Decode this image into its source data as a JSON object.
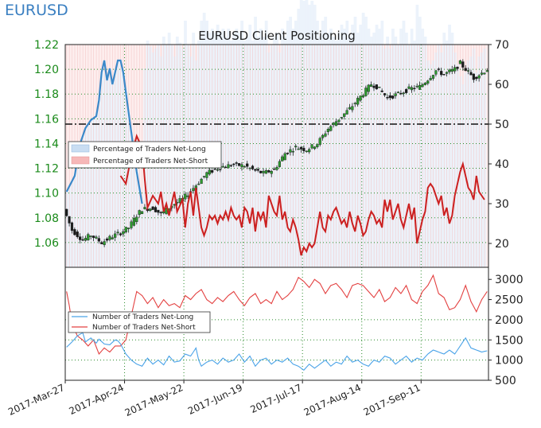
{
  "page_title": "EURUSD",
  "chart_data": [
    {
      "type": "candlestick+line",
      "title": "EURUSD Client Positioning",
      "x_dates": [
        "2017-Mar-27",
        "2017-Apr-24",
        "2017-May-22",
        "2017-Jun-19",
        "2017-Jul-17",
        "2017-Aug-14",
        "2017-Sep-11"
      ],
      "x_date_labels": [
        "2017-Mar-27",
        "2017-Apr-24",
        "2017-May-22",
        "2017-Jun-19",
        "2017-Jul-17",
        "2017-Aug-14",
        "2017-Sep-11"
      ],
      "y_left_ticks": [
        "1.06",
        "1.08",
        "1.10",
        "1.12",
        "1.14",
        "1.16",
        "1.18",
        "1.20",
        "1.22"
      ],
      "y_left_lim": [
        1.04,
        1.22
      ],
      "y_right_ticks": [
        "20",
        "30",
        "40",
        "50",
        "60",
        "70"
      ],
      "y_right_lim": [
        14,
        70
      ],
      "reference_line": 50,
      "legend": [
        {
          "label": "Percentage of Traders Net-Long",
          "color": "#c9ddf2"
        },
        {
          "label": "Percentage of Traders Net-Short",
          "color": "#f6b8b8"
        }
      ],
      "price_anchors": [
        [
          0,
          1.087
        ],
        [
          3,
          1.07
        ],
        [
          7,
          1.062
        ],
        [
          10,
          1.066
        ],
        [
          14,
          1.06
        ],
        [
          18,
          1.065
        ],
        [
          21,
          1.068
        ],
        [
          24,
          1.072
        ],
        [
          27,
          1.082
        ],
        [
          29,
          1.087
        ],
        [
          33,
          1.088
        ],
        [
          36,
          1.083
        ],
        [
          40,
          1.09
        ],
        [
          44,
          1.095
        ],
        [
          48,
          1.104
        ],
        [
          53,
          1.116
        ],
        [
          58,
          1.121
        ],
        [
          63,
          1.123
        ],
        [
          67,
          1.122
        ],
        [
          71,
          1.118
        ],
        [
          74,
          1.116
        ],
        [
          78,
          1.119
        ],
        [
          82,
          1.132
        ],
        [
          86,
          1.137
        ],
        [
          90,
          1.135
        ],
        [
          94,
          1.14
        ],
        [
          98,
          1.152
        ],
        [
          102,
          1.16
        ],
        [
          106,
          1.168
        ],
        [
          110,
          1.178
        ],
        [
          114,
          1.188
        ],
        [
          116,
          1.186
        ],
        [
          120,
          1.177
        ],
        [
          124,
          1.18
        ],
        [
          128,
          1.184
        ],
        [
          132,
          1.186
        ],
        [
          135,
          1.192
        ],
        [
          138,
          1.199
        ],
        [
          141,
          1.196
        ],
        [
          145,
          1.2
        ],
        [
          147,
          1.205
        ],
        [
          149,
          1.2
        ],
        [
          152,
          1.193
        ],
        [
          155,
          1.197
        ],
        [
          157,
          1.2
        ]
      ],
      "net_long_pct_anchors": [
        [
          0,
          33
        ],
        [
          3,
          37
        ],
        [
          5,
          45
        ],
        [
          7,
          49
        ],
        [
          9,
          51
        ],
        [
          11,
          52
        ],
        [
          12,
          56
        ],
        [
          13,
          63
        ],
        [
          14,
          66
        ],
        [
          15,
          61
        ],
        [
          16,
          64
        ],
        [
          17,
          60
        ],
        [
          18,
          63
        ],
        [
          19,
          66
        ],
        [
          20,
          66
        ],
        [
          21,
          63
        ],
        [
          22,
          58
        ],
        [
          23,
          53
        ],
        [
          24,
          48
        ],
        [
          25,
          43
        ],
        [
          26,
          38
        ],
        [
          27,
          34
        ],
        [
          28,
          30
        ]
      ],
      "net_short_pct_anchors": [
        [
          20,
          37
        ],
        [
          22,
          35
        ],
        [
          24,
          42
        ],
        [
          26,
          47
        ],
        [
          28,
          44
        ],
        [
          29,
          36
        ],
        [
          30,
          29
        ],
        [
          32,
          32
        ],
        [
          34,
          30
        ],
        [
          35,
          33
        ],
        [
          36,
          28
        ],
        [
          37,
          30
        ],
        [
          38,
          27
        ],
        [
          40,
          33
        ],
        [
          41,
          28
        ],
        [
          43,
          31
        ],
        [
          44,
          24
        ],
        [
          45,
          30
        ],
        [
          46,
          33
        ],
        [
          47,
          27
        ],
        [
          48,
          34
        ],
        [
          49,
          29
        ],
        [
          50,
          24
        ],
        [
          51,
          22
        ],
        [
          52,
          24
        ],
        [
          53,
          27
        ],
        [
          54,
          26
        ],
        [
          55,
          27
        ],
        [
          56,
          25
        ],
        [
          57,
          27
        ],
        [
          58,
          26
        ],
        [
          59,
          28
        ],
        [
          60,
          26
        ],
        [
          61,
          29
        ],
        [
          62,
          27
        ],
        [
          63,
          26
        ],
        [
          64,
          27
        ],
        [
          65,
          24
        ],
        [
          66,
          29
        ],
        [
          67,
          28
        ],
        [
          68,
          25
        ],
        [
          69,
          29
        ],
        [
          70,
          23
        ],
        [
          71,
          28
        ],
        [
          72,
          26
        ],
        [
          73,
          28
        ],
        [
          74,
          24
        ],
        [
          75,
          32
        ],
        [
          76,
          30
        ],
        [
          77,
          28
        ],
        [
          78,
          27
        ],
        [
          79,
          32
        ],
        [
          80,
          26
        ],
        [
          81,
          28
        ],
        [
          82,
          24
        ],
        [
          83,
          23
        ],
        [
          84,
          26
        ],
        [
          85,
          24
        ],
        [
          86,
          21
        ],
        [
          87,
          17
        ],
        [
          88,
          19
        ],
        [
          89,
          18
        ],
        [
          90,
          20
        ],
        [
          91,
          19
        ],
        [
          92,
          20
        ],
        [
          93,
          24
        ],
        [
          94,
          28
        ],
        [
          95,
          24
        ],
        [
          96,
          23
        ],
        [
          97,
          27
        ],
        [
          98,
          26
        ],
        [
          99,
          28
        ],
        [
          100,
          29
        ],
        [
          101,
          27
        ],
        [
          102,
          25
        ],
        [
          103,
          26
        ],
        [
          104,
          24
        ],
        [
          105,
          28
        ],
        [
          106,
          25
        ],
        [
          107,
          23
        ],
        [
          108,
          27
        ],
        [
          109,
          25
        ],
        [
          110,
          22
        ],
        [
          111,
          23
        ],
        [
          112,
          26
        ],
        [
          113,
          28
        ],
        [
          114,
          27
        ],
        [
          115,
          25
        ],
        [
          116,
          26
        ],
        [
          117,
          24
        ],
        [
          118,
          31
        ],
        [
          119,
          28
        ],
        [
          120,
          31
        ],
        [
          121,
          26
        ],
        [
          122,
          28
        ],
        [
          123,
          30
        ],
        [
          124,
          26
        ],
        [
          125,
          24
        ],
        [
          126,
          27
        ],
        [
          127,
          30
        ],
        [
          128,
          26
        ],
        [
          129,
          29
        ],
        [
          130,
          20
        ],
        [
          131,
          23
        ],
        [
          132,
          26
        ],
        [
          133,
          28
        ],
        [
          134,
          34
        ],
        [
          135,
          35
        ],
        [
          136,
          34
        ],
        [
          137,
          32
        ],
        [
          138,
          30
        ],
        [
          139,
          32
        ],
        [
          140,
          27
        ],
        [
          141,
          29
        ],
        [
          142,
          25
        ],
        [
          143,
          27
        ],
        [
          144,
          32
        ],
        [
          145,
          35
        ],
        [
          146,
          38
        ],
        [
          147,
          40
        ],
        [
          148,
          37
        ],
        [
          149,
          34
        ],
        [
          150,
          33
        ],
        [
          151,
          31
        ],
        [
          152,
          37
        ],
        [
          153,
          33
        ],
        [
          154,
          32
        ],
        [
          155,
          31
        ]
      ]
    },
    {
      "type": "line",
      "y_ticks": [
        "500",
        "1000",
        "1500",
        "2000",
        "2500",
        "3000"
      ],
      "ylim": [
        500,
        3300
      ],
      "legend": [
        {
          "label": "Number of Traders Net-Long",
          "color": "#4aa3e8"
        },
        {
          "label": "Number of Traders Net-Short",
          "color": "#e34040"
        }
      ],
      "net_long_anchors": [
        [
          0,
          1320
        ],
        [
          2,
          1450
        ],
        [
          4,
          1600
        ],
        [
          6,
          1680
        ],
        [
          7,
          1450
        ],
        [
          9,
          1550
        ],
        [
          11,
          1420
        ],
        [
          12,
          1520
        ],
        [
          14,
          1400
        ],
        [
          16,
          1380
        ],
        [
          18,
          1500
        ],
        [
          19,
          1480
        ],
        [
          20,
          1400
        ],
        [
          22,
          1150
        ],
        [
          24,
          1000
        ],
        [
          26,
          900
        ],
        [
          28,
          850
        ],
        [
          30,
          1050
        ],
        [
          32,
          900
        ],
        [
          34,
          1000
        ],
        [
          36,
          880
        ],
        [
          38,
          1100
        ],
        [
          40,
          950
        ],
        [
          42,
          980
        ],
        [
          44,
          1150
        ],
        [
          46,
          1100
        ],
        [
          48,
          1300
        ],
        [
          49,
          1000
        ],
        [
          50,
          850
        ],
        [
          52,
          950
        ],
        [
          54,
          1000
        ],
        [
          56,
          900
        ],
        [
          58,
          1050
        ],
        [
          60,
          950
        ],
        [
          62,
          1000
        ],
        [
          64,
          1150
        ],
        [
          66,
          950
        ],
        [
          68,
          1100
        ],
        [
          70,
          850
        ],
        [
          72,
          1000
        ],
        [
          74,
          1050
        ],
        [
          76,
          900
        ],
        [
          78,
          1000
        ],
        [
          80,
          950
        ],
        [
          82,
          1050
        ],
        [
          84,
          900
        ],
        [
          86,
          850
        ],
        [
          88,
          750
        ],
        [
          90,
          900
        ],
        [
          92,
          800
        ],
        [
          94,
          900
        ],
        [
          96,
          1000
        ],
        [
          98,
          850
        ],
        [
          100,
          950
        ],
        [
          102,
          900
        ],
        [
          104,
          1100
        ],
        [
          106,
          950
        ],
        [
          108,
          1000
        ],
        [
          110,
          900
        ],
        [
          112,
          850
        ],
        [
          114,
          1000
        ],
        [
          116,
          950
        ],
        [
          118,
          1100
        ],
        [
          120,
          1050
        ],
        [
          122,
          900
        ],
        [
          124,
          1000
        ],
        [
          126,
          1100
        ],
        [
          128,
          950
        ],
        [
          130,
          1050
        ],
        [
          132,
          1000
        ],
        [
          134,
          1150
        ],
        [
          136,
          1250
        ],
        [
          138,
          1200
        ],
        [
          140,
          1150
        ],
        [
          142,
          1250
        ],
        [
          144,
          1150
        ],
        [
          146,
          1350
        ],
        [
          148,
          1550
        ],
        [
          150,
          1300
        ],
        [
          152,
          1250
        ],
        [
          154,
          1200
        ],
        [
          156,
          1230
        ]
      ],
      "net_short_anchors": [
        [
          0,
          2700
        ],
        [
          1,
          2350
        ],
        [
          2,
          1900
        ],
        [
          4,
          1600
        ],
        [
          6,
          1500
        ],
        [
          8,
          1350
        ],
        [
          10,
          1500
        ],
        [
          12,
          1150
        ],
        [
          14,
          1300
        ],
        [
          16,
          1200
        ],
        [
          18,
          1350
        ],
        [
          20,
          1350
        ],
        [
          22,
          1500
        ],
        [
          24,
          2100
        ],
        [
          26,
          2700
        ],
        [
          28,
          2600
        ],
        [
          30,
          2400
        ],
        [
          32,
          2550
        ],
        [
          34,
          2300
        ],
        [
          36,
          2500
        ],
        [
          38,
          2350
        ],
        [
          40,
          2400
        ],
        [
          42,
          2300
        ],
        [
          44,
          2600
        ],
        [
          46,
          2500
        ],
        [
          48,
          2650
        ],
        [
          50,
          2750
        ],
        [
          52,
          2500
        ],
        [
          54,
          2400
        ],
        [
          56,
          2550
        ],
        [
          58,
          2450
        ],
        [
          60,
          2600
        ],
        [
          62,
          2700
        ],
        [
          64,
          2500
        ],
        [
          66,
          2350
        ],
        [
          68,
          2550
        ],
        [
          70,
          2650
        ],
        [
          72,
          2400
        ],
        [
          74,
          2500
        ],
        [
          76,
          2400
        ],
        [
          78,
          2700
        ],
        [
          80,
          2500
        ],
        [
          82,
          2600
        ],
        [
          84,
          2750
        ],
        [
          86,
          3050
        ],
        [
          88,
          2950
        ],
        [
          90,
          2800
        ],
        [
          92,
          3000
        ],
        [
          94,
          2900
        ],
        [
          96,
          2650
        ],
        [
          98,
          2850
        ],
        [
          100,
          2900
        ],
        [
          102,
          2750
        ],
        [
          104,
          2550
        ],
        [
          106,
          2850
        ],
        [
          108,
          2900
        ],
        [
          110,
          2850
        ],
        [
          112,
          2700
        ],
        [
          114,
          2550
        ],
        [
          116,
          2750
        ],
        [
          118,
          2450
        ],
        [
          120,
          2550
        ],
        [
          122,
          2800
        ],
        [
          124,
          2650
        ],
        [
          126,
          2850
        ],
        [
          128,
          2500
        ],
        [
          130,
          2400
        ],
        [
          132,
          2700
        ],
        [
          134,
          2850
        ],
        [
          136,
          3100
        ],
        [
          138,
          2650
        ],
        [
          140,
          2550
        ],
        [
          142,
          2250
        ],
        [
          144,
          2300
        ],
        [
          146,
          2500
        ],
        [
          148,
          2850
        ],
        [
          150,
          2450
        ],
        [
          152,
          2200
        ],
        [
          154,
          2500
        ],
        [
          156,
          2700
        ]
      ]
    }
  ]
}
